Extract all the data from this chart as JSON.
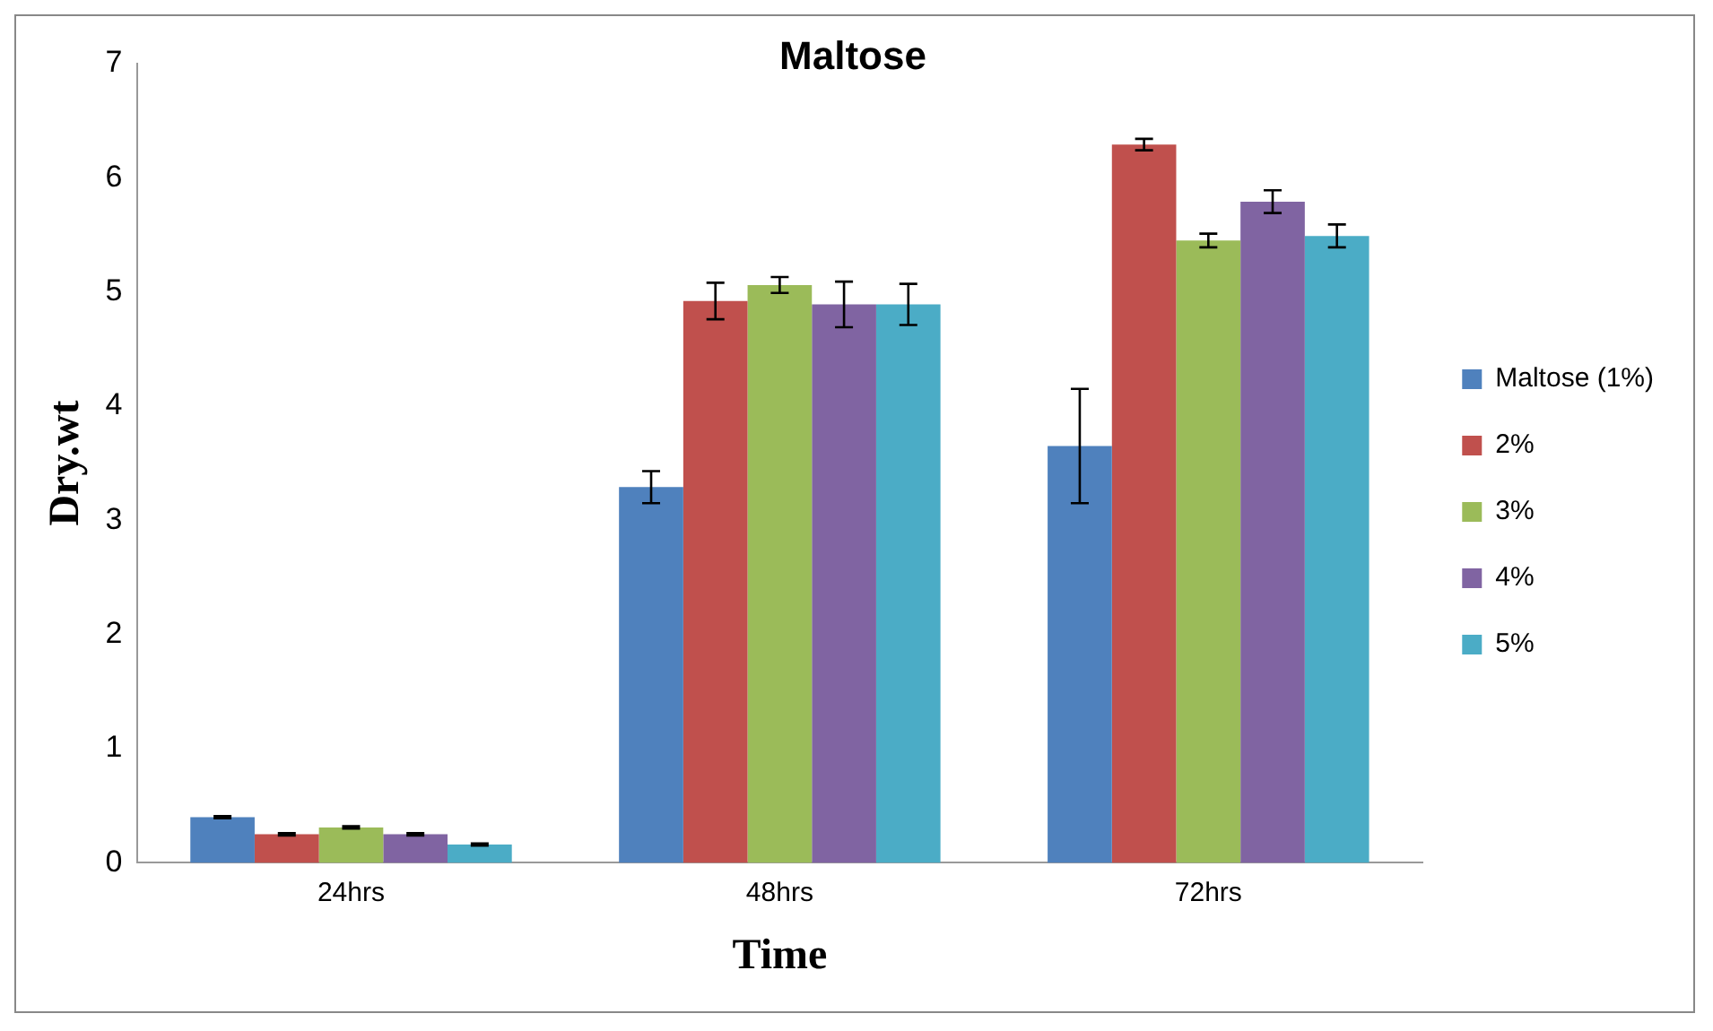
{
  "chart_data": {
    "type": "bar",
    "title": "Maltose",
    "xlabel": "Time",
    "ylabel": "Dry.wt",
    "categories": [
      "24hrs",
      "48hrs",
      "72hrs"
    ],
    "series": [
      {
        "name": "Maltose (1%)",
        "color": "#4f81bd",
        "values": [
          0.4,
          3.29,
          3.65
        ],
        "errors": [
          0.01,
          0.14,
          0.5
        ]
      },
      {
        "name": "2%",
        "color": "#c0504d",
        "values": [
          0.25,
          4.92,
          6.29
        ],
        "errors": [
          0.01,
          0.16,
          0.05
        ]
      },
      {
        "name": "3%",
        "color": "#9bbb59",
        "values": [
          0.31,
          5.06,
          5.45
        ],
        "errors": [
          0.01,
          0.07,
          0.06
        ]
      },
      {
        "name": "4%",
        "color": "#8064a2",
        "values": [
          0.25,
          4.89,
          5.79
        ],
        "errors": [
          0.01,
          0.2,
          0.1
        ]
      },
      {
        "name": "5%",
        "color": "#4bacc6",
        "values": [
          0.16,
          4.89,
          5.49
        ],
        "errors": [
          0.01,
          0.18,
          0.1
        ]
      }
    ],
    "ylim": [
      0,
      7
    ],
    "yticks": [
      0,
      1,
      2,
      3,
      4,
      5,
      6,
      7
    ],
    "grid": false,
    "legend": "right"
  }
}
